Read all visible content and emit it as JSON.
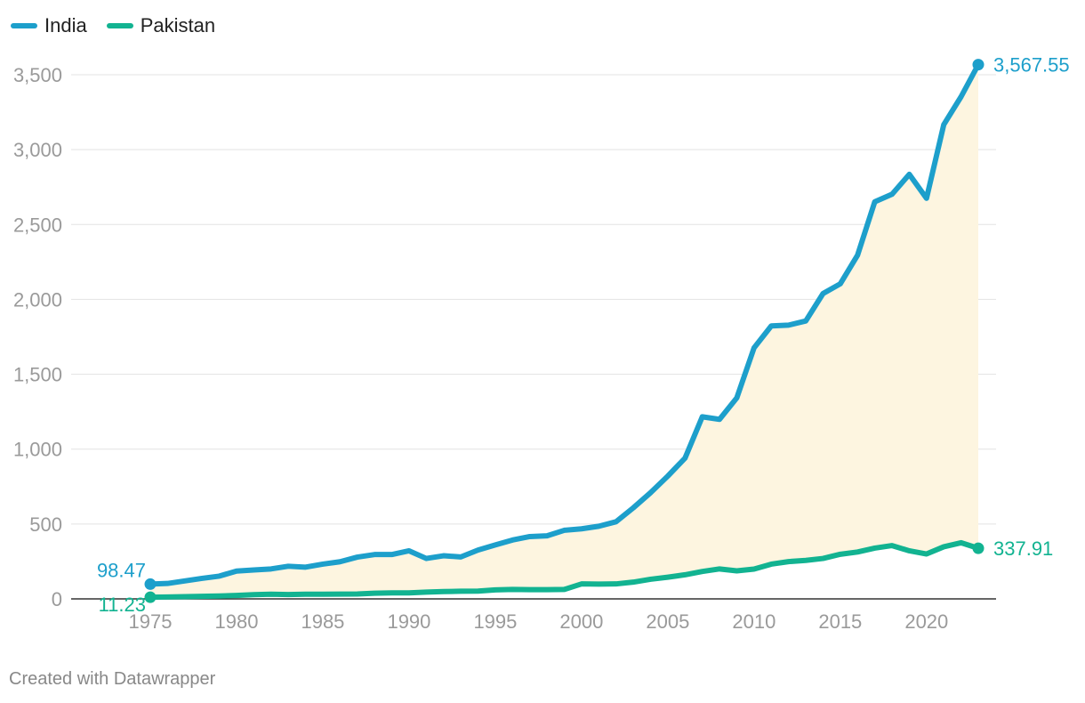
{
  "legend": [
    {
      "name": "India",
      "color": "#1d9fcb"
    },
    {
      "name": "Pakistan",
      "color": "#12b391"
    }
  ],
  "footer": "Created with Datawrapper",
  "chart_data": {
    "type": "line",
    "title": "",
    "xlabel": "",
    "ylabel": "",
    "ylim": [
      0,
      3700
    ],
    "xlim": [
      1970,
      2027
    ],
    "y_ticks": [
      0,
      500,
      1000,
      1500,
      2000,
      2500,
      3000,
      3500
    ],
    "y_tick_labels": [
      "0",
      "500",
      "1,000",
      "1,500",
      "2,000",
      "2,500",
      "3,000",
      "3,500"
    ],
    "x_ticks": [
      1975,
      1980,
      1985,
      1990,
      1995,
      2000,
      2005,
      2010,
      2015,
      2020
    ],
    "grid": true,
    "legend_position": "top-left",
    "fill_between": {
      "color": "#fdf5e0",
      "series": [
        "India",
        "Pakistan"
      ]
    },
    "x": [
      1975,
      1976,
      1977,
      1978,
      1979,
      1980,
      1981,
      1982,
      1983,
      1984,
      1985,
      1986,
      1987,
      1988,
      1989,
      1990,
      1991,
      1992,
      1993,
      1994,
      1995,
      1996,
      1997,
      1998,
      1999,
      2000,
      2001,
      2002,
      2003,
      2004,
      2005,
      2006,
      2007,
      2008,
      2009,
      2010,
      2011,
      2012,
      2013,
      2014,
      2015,
      2016,
      2017,
      2018,
      2019,
      2020,
      2021,
      2022,
      2023
    ],
    "series": [
      {
        "name": "India",
        "color": "#1d9fcb",
        "values": [
          98.47,
          103,
          120,
          137,
          152,
          186,
          193,
          200,
          218,
          212,
          232,
          248,
          279,
          296,
          296,
          321,
          270,
          288,
          280,
          326,
          360,
          393,
          416,
          421,
          458,
          468,
          485,
          515,
          608,
          709,
          820,
          940,
          1216,
          1199,
          1342,
          1676,
          1823,
          1828,
          1856,
          2039,
          2104,
          2295,
          2652,
          2702,
          2835,
          2675,
          3167,
          3353,
          3567.55
        ],
        "start_label": "98.47",
        "end_label": "3,567.55"
      },
      {
        "name": "Pakistan",
        "color": "#12b391",
        "values": [
          11.23,
          13,
          15,
          17,
          19,
          23,
          28,
          31,
          29,
          31,
          31,
          32,
          33,
          38,
          40,
          40,
          45,
          49,
          51,
          52,
          60,
          63,
          62,
          62,
          63,
          100,
          99,
          100,
          112,
          131,
          145,
          161,
          183,
          200,
          187,
          199,
          232,
          249,
          257,
          270,
          298,
          313,
          339,
          356,
          321,
          300,
          348,
          375,
          337.91
        ],
        "start_label": "11.23",
        "end_label": "337.91"
      }
    ]
  }
}
